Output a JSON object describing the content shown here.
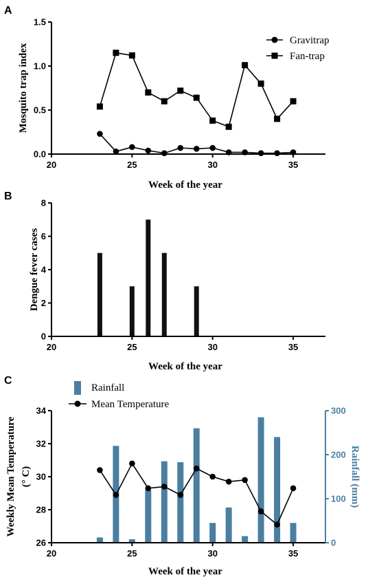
{
  "panels": {
    "a": {
      "letter": "A",
      "xlabel": "Week of the year",
      "ylabel": "Mosquito trap index",
      "legend": [
        "Gravitrap",
        "Fan-trap"
      ]
    },
    "b": {
      "letter": "B",
      "xlabel": "Week of the year",
      "ylabel": "Dengue fever cases"
    },
    "c": {
      "letter": "C",
      "xlabel": "Week of the year",
      "ylabel_left_line1": "Weekly Mean Temperature",
      "ylabel_left_line2": "(° C)",
      "ylabel_right": "Rainfall (mm)",
      "legend": [
        "Rainfall",
        "Mean Temperature"
      ]
    }
  },
  "colors": {
    "series_black": "#000000",
    "rainfall_bar": "#4a7fa0",
    "right_axis": "#4a7fa0"
  },
  "chart_data": [
    {
      "type": "line",
      "x": [
        23,
        24,
        25,
        26,
        27,
        28,
        29,
        30,
        31,
        32,
        33,
        34,
        35
      ],
      "series": [
        {
          "name": "Gravitrap",
          "marker": "circle",
          "values": [
            0.23,
            0.03,
            0.08,
            0.04,
            0.01,
            0.07,
            0.06,
            0.07,
            0.02,
            0.02,
            0.01,
            0.01,
            0.02
          ]
        },
        {
          "name": "Fan-trap",
          "marker": "square",
          "values": [
            0.54,
            1.15,
            1.12,
            0.7,
            0.6,
            0.72,
            0.64,
            0.38,
            0.31,
            1.01,
            0.8,
            0.4,
            0.6
          ]
        }
      ],
      "xlabel": "Week of the year",
      "ylabel": "Mosquito trap index",
      "xlim": [
        20,
        37
      ],
      "ylim": [
        0,
        1.5
      ],
      "xticks": [
        "20",
        "25",
        "30",
        "35"
      ],
      "yticks": [
        "0.0",
        "0.5",
        "1.0",
        "1.5"
      ],
      "legend_position": "top-right",
      "grid": false
    },
    {
      "type": "bar",
      "x": [
        23,
        25,
        26,
        27,
        29
      ],
      "values": [
        5,
        3,
        7,
        5,
        3
      ],
      "xlabel": "Week of the year",
      "ylabel": "Dengue fever cases",
      "xlim": [
        20,
        37
      ],
      "ylim": [
        0,
        8
      ],
      "xticks": [
        "20",
        "25",
        "30",
        "35"
      ],
      "yticks": [
        "0",
        "2",
        "4",
        "6",
        "8"
      ],
      "grid": false
    },
    {
      "type": "bar+line",
      "x": [
        23,
        24,
        25,
        26,
        27,
        28,
        29,
        30,
        31,
        32,
        33,
        34,
        35
      ],
      "series": [
        {
          "name": "Rainfall",
          "kind": "bar",
          "axis": "right",
          "values": [
            12,
            220,
            8,
            120,
            185,
            183,
            260,
            45,
            80,
            15,
            285,
            240,
            45
          ]
        },
        {
          "name": "Mean Temperature",
          "kind": "line",
          "axis": "left",
          "marker": "circle",
          "values": [
            30.4,
            28.9,
            30.8,
            29.3,
            29.4,
            28.9,
            30.5,
            30.0,
            29.7,
            29.8,
            27.9,
            27.1,
            29.3
          ]
        }
      ],
      "xlabel": "Week of the year",
      "ylabel_left": "Weekly Mean Temperature (° C)",
      "ylabel_right": "Rainfall (mm)",
      "xlim": [
        20,
        37
      ],
      "ylim_left": [
        26,
        34
      ],
      "ylim_right": [
        0,
        300
      ],
      "xticks": [
        "20",
        "25",
        "30",
        "35"
      ],
      "yticks_left": [
        "26",
        "28",
        "30",
        "32",
        "34"
      ],
      "yticks_right": [
        "0",
        "100",
        "200",
        "300"
      ],
      "legend_position": "top-left",
      "grid": false
    }
  ]
}
